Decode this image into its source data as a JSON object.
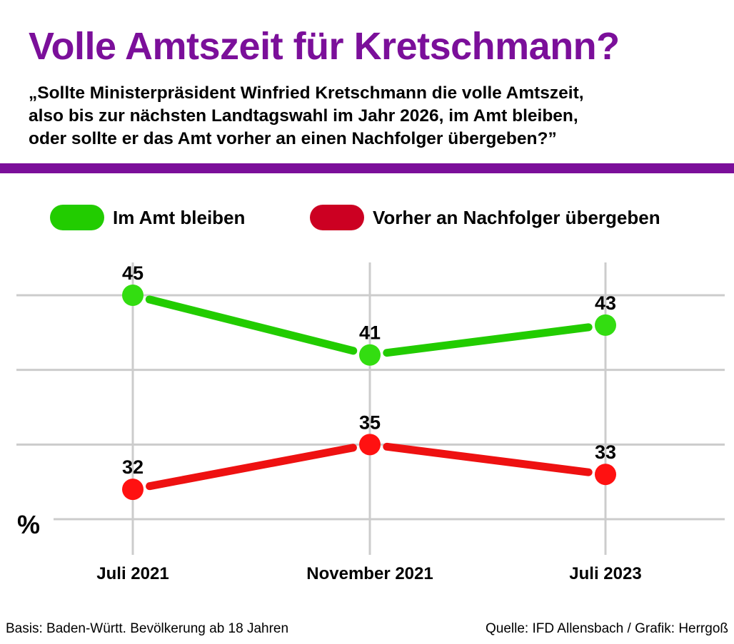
{
  "title": "Volle Amtszeit für Kretschmann?",
  "question": [
    "„Sollte Ministerpräsident Winfried Kretschmann die volle Amtszeit,",
    "also bis zur nächsten Landtagswahl im Jahr 2026, im Amt bleiben,",
    "oder sollte er das Amt vorher an einen Nachfolger übergeben?”"
  ],
  "colors": {
    "title": "#7b0f9a",
    "rule": "#7b0f9a",
    "grid": "#cccccc"
  },
  "chart_data": {
    "type": "line",
    "categories": [
      "Juli 2021",
      "November 2021",
      "Juli 2023"
    ],
    "series": [
      {
        "name": "Im Amt bleiben",
        "values": [
          45,
          41,
          43
        ],
        "line_color": "#22cc00",
        "marker_color": "#33dd11",
        "legend_color": "#22cc00"
      },
      {
        "name": "Vorher an Nachfolger übergeben",
        "values": [
          32,
          35,
          33
        ],
        "line_color": "#ee1111",
        "marker_color": "#ff1111",
        "legend_color": "#cc0022"
      }
    ],
    "ylabel": "%",
    "ylim": [
      30,
      47.5
    ],
    "gridlines": [
      30,
      35,
      40,
      45
    ],
    "grid": true,
    "legend_position": "top",
    "data_labels": true
  },
  "footer": {
    "basis": "Basis: Baden-Württ. Bevölkerung ab 18 Jahren",
    "source": "Quelle: IFD Allensbach / Grafik: Herrgoß"
  }
}
